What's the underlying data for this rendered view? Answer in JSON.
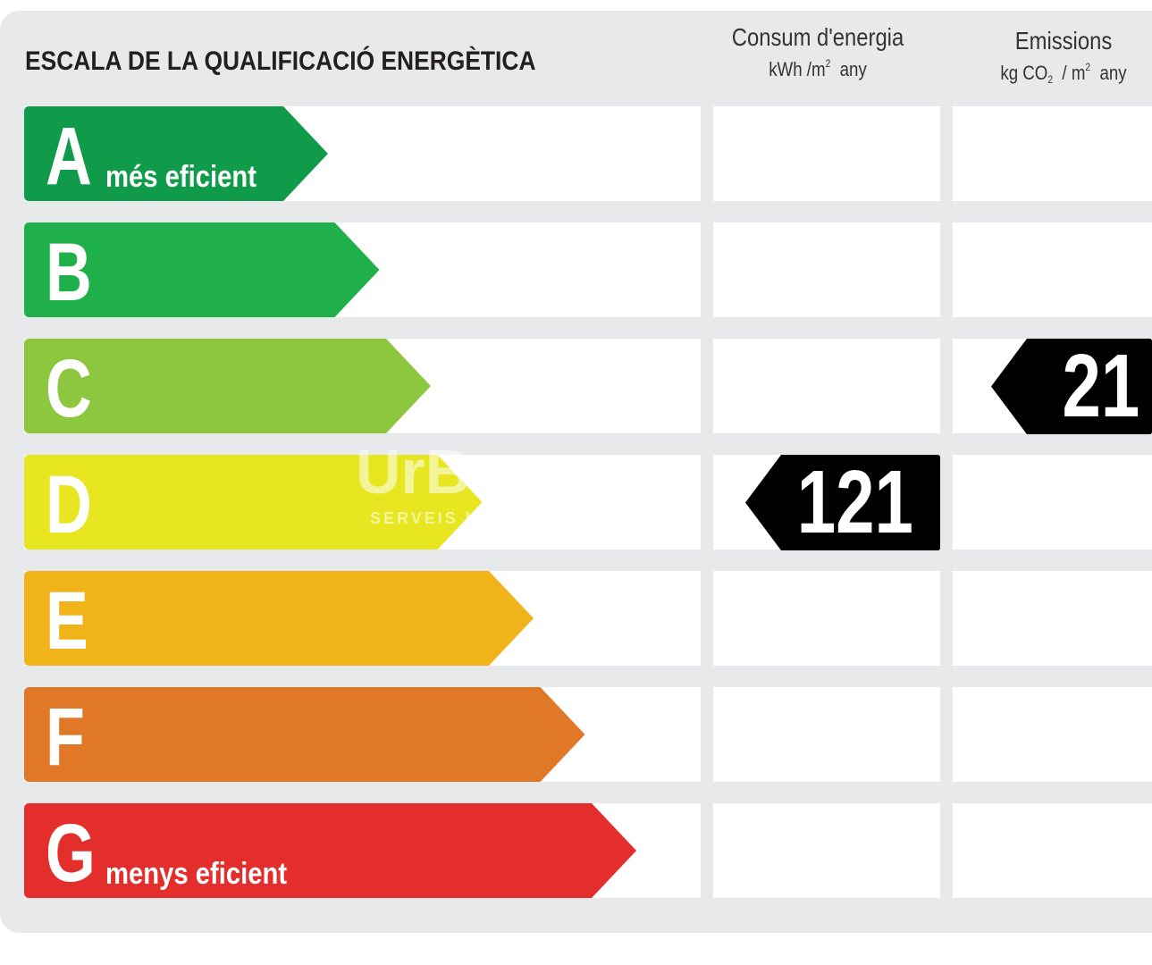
{
  "title": "ESCALA DE LA QUALIFICACIÓ ENERGÈTICA",
  "columns": {
    "consumption": {
      "title": "Consum d'energia",
      "unit_prefix": "kWh /m",
      "unit_exp": "2",
      "unit_suffix": "any"
    },
    "emissions": {
      "title": "Emissions",
      "unit_prefix": "kg CO",
      "unit_sub": "2",
      "unit_mid": "/ m",
      "unit_exp": "2",
      "unit_suffix": "any"
    }
  },
  "bands": [
    {
      "letter": "A",
      "note": "més eficient",
      "color": "#0f9b4a"
    },
    {
      "letter": "B",
      "note": "",
      "color": "#20b04b"
    },
    {
      "letter": "C",
      "note": "",
      "color": "#8dc63f"
    },
    {
      "letter": "D",
      "note": "",
      "color": "#e7e621"
    },
    {
      "letter": "E",
      "note": "",
      "color": "#f0b41a"
    },
    {
      "letter": "F",
      "note": "",
      "color": "#e07828"
    },
    {
      "letter": "G",
      "note": "menys eficient",
      "color": "#e42e2c"
    }
  ],
  "ratings": {
    "consumption": {
      "value": "121",
      "band": "D"
    },
    "emissions": {
      "value": "21",
      "band": "C"
    }
  },
  "watermark": {
    "brand": "UrB",
    "tagline": "SERVEIS I"
  }
}
